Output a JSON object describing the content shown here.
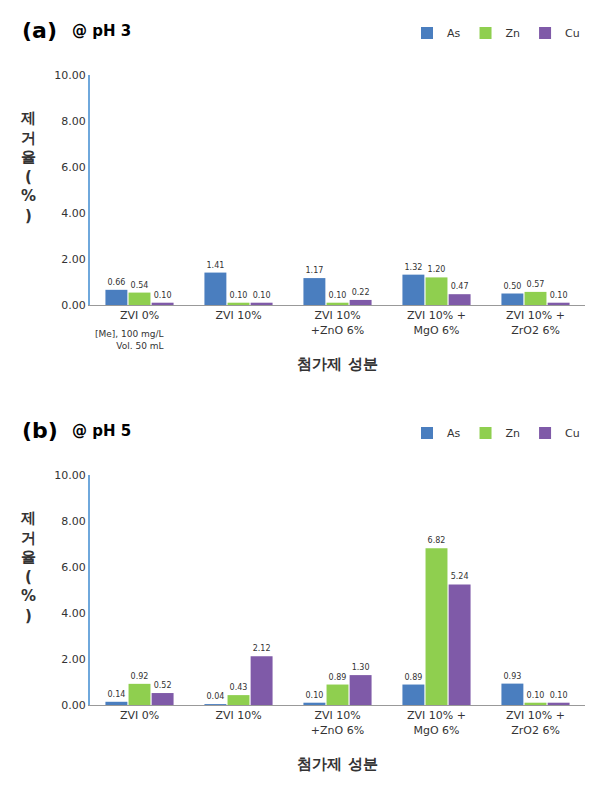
{
  "chart_data": [
    {
      "type": "bar",
      "title": "(a)",
      "subtitle": "@ pH 3",
      "x_label": "첨가제 성분",
      "y_label": "제거율(%)",
      "annotations": [
        "[Me], 100 mg/L",
        "Vol. 50 mL"
      ],
      "categories": [
        "ZVI 0%",
        "ZVI 10%",
        "ZVI 10%\n+ZnO 6%",
        "ZVI 10% +\nMgO 6%",
        "ZVI 10% +\nZrO2 6%"
      ],
      "series": [
        {
          "name": "As",
          "color": "#4a7ebf",
          "values": [
            0.66,
            1.41,
            1.17,
            1.32,
            0.5
          ],
          "value_labels": [
            "0.66",
            "1.41",
            "1.17",
            "1.32",
            "0.50"
          ]
        },
        {
          "name": "Zn",
          "color": "#8fcf4f",
          "values": [
            0.54,
            0.1,
            0.1,
            1.2,
            0.57
          ],
          "value_labels": [
            "0.54",
            "0.10",
            "0.10",
            "1.20",
            "0.57"
          ]
        },
        {
          "name": "Cu",
          "color": "#7f5aa8",
          "values": [
            0.1,
            0.1,
            0.22,
            0.47,
            0.1
          ],
          "value_labels": [
            "0.10",
            "0.10",
            "0.22",
            "0.47",
            "0.10"
          ]
        }
      ],
      "ylim": [
        0,
        10
      ],
      "yticks": [
        {
          "value": 0,
          "label": "0.00"
        },
        {
          "value": 2,
          "label": "2.00"
        },
        {
          "value": 4,
          "label": "4.00"
        },
        {
          "value": 6,
          "label": "6.00"
        },
        {
          "value": 8,
          "label": "8.00"
        },
        {
          "value": 10,
          "label": "10.00"
        }
      ],
      "grid": false,
      "legend": "top right",
      "data_labels": true
    },
    {
      "type": "bar",
      "title": "(b)",
      "subtitle": "@ pH 5",
      "x_label": "첨가제 성분",
      "y_label": "제거율(%)",
      "categories": [
        "ZVI 0%",
        "ZVI 10%",
        "ZVI 10%\n+ZnO 6%",
        "ZVI 10% +\nMgO 6%",
        "ZVI 10% +\nZrO2 6%"
      ],
      "series": [
        {
          "name": "As",
          "color": "#4a7ebf",
          "values": [
            0.14,
            0.04,
            0.1,
            0.89,
            0.93
          ],
          "value_labels": [
            "0.14",
            "0.04",
            "0.10",
            "0.89",
            "0.93"
          ]
        },
        {
          "name": "Zn",
          "color": "#8fcf4f",
          "values": [
            0.92,
            0.43,
            0.89,
            6.82,
            0.1
          ],
          "value_labels": [
            "0.92",
            "0.43",
            "0.89",
            "6.82",
            "0.10"
          ]
        },
        {
          "name": "Cu",
          "color": "#7f5aa8",
          "values": [
            0.52,
            2.12,
            1.3,
            5.24,
            0.1
          ],
          "value_labels": [
            "0.52",
            "2.12",
            "1.30",
            "5.24",
            "0.10"
          ]
        }
      ],
      "ylim": [
        0,
        10
      ],
      "yticks": [
        {
          "value": 0,
          "label": "0.00"
        },
        {
          "value": 2,
          "label": "2.00"
        },
        {
          "value": 4,
          "label": "4.00"
        },
        {
          "value": 6,
          "label": "6.00"
        },
        {
          "value": 8,
          "label": "8.00"
        },
        {
          "value": 10,
          "label": "10.00"
        }
      ],
      "grid": false,
      "legend": "top right",
      "data_labels": true
    }
  ]
}
